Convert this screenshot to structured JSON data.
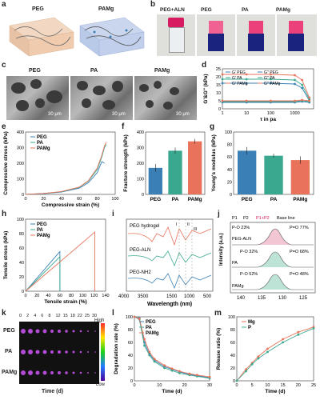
{
  "panels": {
    "a": {
      "letter": "a",
      "labels": [
        "PEG",
        "PAMg"
      ]
    },
    "b": {
      "letter": "b",
      "labels": [
        "PEG+ALN",
        "PEG",
        "PA",
        "PAMg"
      ]
    },
    "c": {
      "letter": "c",
      "labels": [
        "PEG",
        "PA",
        "PAMg"
      ],
      "scale": "30 μm"
    },
    "d": {
      "letter": "d"
    },
    "e": {
      "letter": "e"
    },
    "f": {
      "letter": "f"
    },
    "g": {
      "letter": "g"
    },
    "h": {
      "letter": "h"
    },
    "i": {
      "letter": "i",
      "traces": [
        "PEG hydrogel",
        "PEG-ALN",
        "PEG-NH2"
      ],
      "peaks": [
        "I",
        "II",
        "III"
      ]
    },
    "j": {
      "letter": "j",
      "legend": [
        "P1",
        "P2",
        "P1+P2",
        "Base line"
      ],
      "rows": [
        {
          "name": "PEG-ALN",
          "po": "P-O 23%",
          "peq": "P=O 77%"
        },
        {
          "name": "PA",
          "po": "P-O 32%",
          "peq": "P=O 68%"
        },
        {
          "name": "PAMg",
          "po": "P-O 52%",
          "peq": "P=O 48%"
        }
      ]
    },
    "k": {
      "letter": "k",
      "days": [
        "0",
        "2",
        "4",
        "6",
        "8",
        "12",
        "15",
        "18",
        "22",
        "25",
        "30"
      ],
      "rows": [
        "PEG",
        "PA",
        "PAMg"
      ],
      "high": "High",
      "low": "Low",
      "xlabel": "Time (d)"
    },
    "l": {
      "letter": "l"
    },
    "m": {
      "letter": "m"
    }
  },
  "colors": {
    "peg": "#3a7fb5",
    "pa": "#3aa88f",
    "pamg": "#e8735a"
  },
  "chart_data": [
    {
      "id": "d",
      "type": "line",
      "xlabel": "τ in pa",
      "ylabel": "G'&G'' (kPa)",
      "xscale": "log",
      "xlim": [
        1,
        6000
      ],
      "ylim": [
        0,
        25
      ],
      "xticks": [
        "1",
        "10",
        "100",
        "1000"
      ],
      "yticks": [
        "0",
        "5",
        "10",
        "15",
        "20",
        "25"
      ],
      "legend": [
        "G' PEG",
        "G'' PEG",
        "G' PA",
        "G'' PA",
        "G' PAMg",
        "G'' PAMg"
      ],
      "series": [
        {
          "name": "G' PEG",
          "x": [
            1,
            10,
            100,
            1000,
            2000,
            4000
          ],
          "values": [
            16,
            16,
            16,
            15.5,
            13,
            5
          ]
        },
        {
          "name": "G'' PEG",
          "x": [
            1,
            10,
            100,
            1000,
            2000,
            4000
          ],
          "values": [
            4,
            4,
            4,
            4,
            4.5,
            4
          ]
        },
        {
          "name": "G' PA",
          "x": [
            1,
            10,
            100,
            1000,
            2000,
            4000
          ],
          "values": [
            18.5,
            18.5,
            18.5,
            18,
            15,
            6
          ]
        },
        {
          "name": "G'' PA",
          "x": [
            1,
            10,
            100,
            1000,
            2000,
            4000
          ],
          "values": [
            4.5,
            4.5,
            4.5,
            4.5,
            5,
            4.5
          ]
        },
        {
          "name": "G' PAMg",
          "x": [
            1,
            10,
            100,
            1000,
            2000,
            4000
          ],
          "values": [
            21.5,
            21.5,
            21.5,
            21,
            18,
            7
          ]
        },
        {
          "name": "G'' PAMg",
          "x": [
            1,
            10,
            100,
            1000,
            2000,
            4000
          ],
          "values": [
            5,
            5,
            5,
            5,
            5.5,
            5
          ]
        }
      ]
    },
    {
      "id": "e",
      "type": "line",
      "xlabel": "Compressive strain (%)",
      "ylabel": "Compressive stress (kPa)",
      "xlim": [
        0,
        100
      ],
      "ylim": [
        0,
        400
      ],
      "xticks": [
        "0",
        "20",
        "40",
        "60",
        "80",
        "100"
      ],
      "yticks": [
        "0",
        "100",
        "200",
        "300",
        "400"
      ],
      "series": [
        {
          "name": "PEG",
          "x": [
            0,
            20,
            40,
            60,
            70,
            80,
            85,
            88
          ],
          "values": [
            0,
            5,
            15,
            40,
            75,
            140,
            210,
            200
          ]
        },
        {
          "name": "PA",
          "x": [
            0,
            20,
            40,
            60,
            70,
            80,
            85,
            88,
            90
          ],
          "values": [
            0,
            6,
            17,
            45,
            85,
            160,
            240,
            300,
            320
          ]
        },
        {
          "name": "PAMg",
          "x": [
            0,
            20,
            40,
            60,
            70,
            80,
            85,
            88,
            90
          ],
          "values": [
            0,
            6,
            18,
            47,
            88,
            170,
            250,
            310,
            335
          ]
        }
      ]
    },
    {
      "id": "f",
      "type": "bar",
      "ylabel": "Fracture strength (kPa)",
      "categories": [
        "PEG",
        "PA",
        "PAMg"
      ],
      "values": [
        170,
        280,
        340
      ],
      "errors": [
        25,
        20,
        15
      ],
      "ylim": [
        0,
        400
      ],
      "yticks": [
        "0",
        "100",
        "200",
        "300",
        "400"
      ]
    },
    {
      "id": "g",
      "type": "bar",
      "ylabel": "Young's modulus (kPa)",
      "categories": [
        "PEG",
        "PA",
        "PAMg"
      ],
      "values": [
        70,
        62,
        55
      ],
      "errors": [
        6,
        3,
        6
      ],
      "ylim": [
        0,
        100
      ],
      "yticks": [
        "0",
        "20",
        "40",
        "60",
        "80",
        "100"
      ]
    },
    {
      "id": "h",
      "type": "line",
      "xlabel": "Tensile strain (%)",
      "ylabel": "Tensile stress (kPa)",
      "xlim": [
        0,
        140
      ],
      "ylim": [
        0,
        100
      ],
      "xticks": [
        "0",
        "20",
        "40",
        "60",
        "80",
        "100",
        "120",
        "140"
      ],
      "yticks": [
        "0",
        "20",
        "40",
        "60",
        "80",
        "100"
      ],
      "series": [
        {
          "name": "PEG",
          "x": [
            0,
            60,
            60
          ],
          "values": [
            0,
            55,
            0
          ]
        },
        {
          "name": "PA",
          "x": [
            0,
            60,
            60
          ],
          "values": [
            0,
            48,
            0
          ]
        },
        {
          "name": "PAMg",
          "x": [
            0,
            121,
            121
          ],
          "values": [
            0,
            82,
            0
          ]
        }
      ]
    },
    {
      "id": "l",
      "type": "line",
      "xlabel": "Time (d)",
      "ylabel": "Degradation rate (%)",
      "xlim": [
        0,
        30
      ],
      "ylim": [
        0,
        100
      ],
      "xticks": [
        "0",
        "10",
        "20",
        "30"
      ],
      "yticks": [
        "0",
        "20",
        "40",
        "60",
        "80",
        "100"
      ],
      "series": [
        {
          "name": "PEG",
          "x": [
            0,
            2,
            4,
            6,
            8,
            12,
            15,
            18,
            22,
            25,
            30
          ],
          "values": [
            100,
            98,
            60,
            42,
            32,
            22,
            18,
            14,
            10,
            8,
            5
          ]
        },
        {
          "name": "PA",
          "x": [
            0,
            2,
            4,
            6,
            8,
            12,
            15,
            18,
            22,
            25,
            30
          ],
          "values": [
            100,
            96,
            55,
            40,
            30,
            20,
            16,
            12,
            9,
            7,
            4
          ]
        },
        {
          "name": "PAMg",
          "x": [
            0,
            2,
            4,
            6,
            8,
            12,
            15,
            18,
            22,
            25,
            30
          ],
          "values": [
            100,
            97,
            65,
            45,
            34,
            24,
            19,
            15,
            11,
            9,
            6
          ]
        }
      ]
    },
    {
      "id": "m",
      "type": "scatter",
      "xlabel": "Time (d)",
      "ylabel": "Release ratio (%)",
      "xlim": [
        0,
        25
      ],
      "ylim": [
        0,
        100
      ],
      "xticks": [
        "0",
        "5",
        "10",
        "15",
        "20",
        "25"
      ],
      "yticks": [
        "0",
        "20",
        "40",
        "60",
        "80",
        "100"
      ],
      "series": [
        {
          "name": "Mg",
          "x": [
            0,
            3,
            5,
            7,
            10,
            15,
            20,
            25
          ],
          "values": [
            0,
            18,
            28,
            38,
            50,
            65,
            76,
            84
          ]
        },
        {
          "name": "P",
          "x": [
            0,
            3,
            5,
            7,
            10,
            15,
            20,
            25
          ],
          "values": [
            0,
            15,
            26,
            35,
            45,
            60,
            72,
            82
          ]
        }
      ]
    }
  ]
}
